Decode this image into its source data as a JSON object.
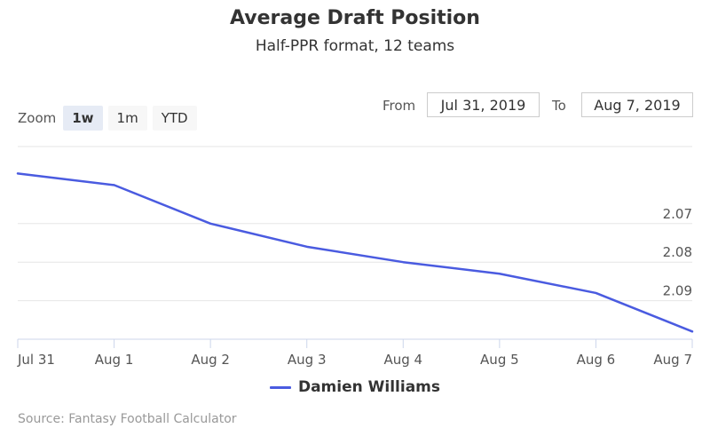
{
  "chart_data": {
    "type": "line",
    "title": "Average Draft Position",
    "subtitle": "Half-PPR format, 12 teams",
    "x": [
      "Jul 31",
      "Aug 1",
      "Aug 2",
      "Aug 3",
      "Aug 4",
      "Aug 5",
      "Aug 6",
      "Aug 7"
    ],
    "series": [
      {
        "name": "Damien Williams",
        "values": [
          2.057,
          2.06,
          2.07,
          2.076,
          2.08,
          2.083,
          2.088,
          2.098
        ],
        "color": "#4a5be0"
      }
    ],
    "y_ticks": [
      "2.07",
      "2.08",
      "2.09"
    ],
    "y_tick_values": [
      2.07,
      2.08,
      2.09
    ],
    "ylim": [
      2.05,
      2.1
    ],
    "y_reversed": true,
    "y_axis_side": "right",
    "grid": true,
    "legend_position": "bottom-center"
  },
  "zoom": {
    "label": "Zoom",
    "buttons": [
      {
        "label": "1w",
        "active": true
      },
      {
        "label": "1m",
        "active": false
      },
      {
        "label": "YTD",
        "active": false
      }
    ]
  },
  "range": {
    "from_label": "From",
    "from_value": "Jul 31, 2019",
    "to_label": "To",
    "to_value": "Aug 7, 2019"
  },
  "source": "Source: Fantasy Football Calculator"
}
